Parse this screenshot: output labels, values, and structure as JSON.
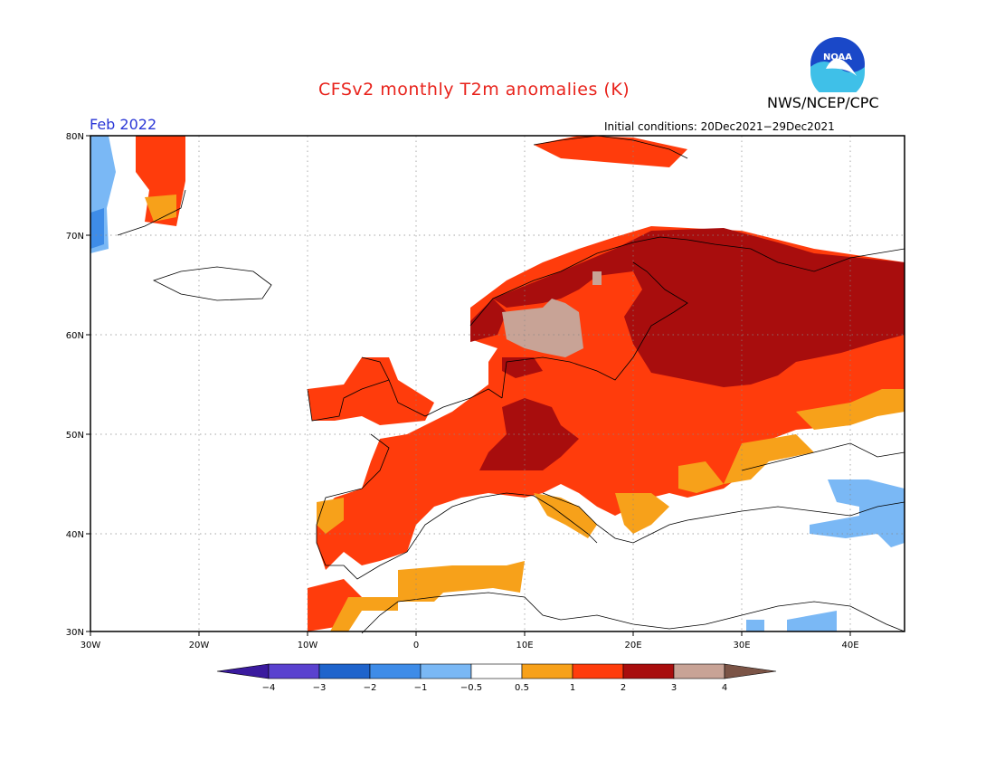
{
  "title": "CFSv2 monthly T2m anomalies (K)",
  "agency": "NWS/NCEP/CPC",
  "logo_text": "NOAA",
  "valid_month": "Feb 2022",
  "initial_conditions": "Initial conditions: 20Dec2021−29Dec2021",
  "lat_labels": [
    "80N",
    "70N",
    "60N",
    "50N",
    "40N",
    "30N"
  ],
  "lon_labels": [
    "30W",
    "20W",
    "10W",
    "0",
    "10E",
    "20E",
    "30E",
    "40E"
  ],
  "colorbar": {
    "ticks": [
      "−4",
      "−3",
      "−2",
      "−1",
      "−0.5",
      "0.5",
      "1",
      "2",
      "3",
      "4"
    ],
    "colors": [
      "#3a1a9e",
      "#5a42cf",
      "#1f64cc",
      "#3e8ce8",
      "#7ab8f5",
      "#ffffff",
      "#f7a11a",
      "#ff3c0c",
      "#a80d0d",
      "#c8a396",
      "#7b5446"
    ]
  }
}
